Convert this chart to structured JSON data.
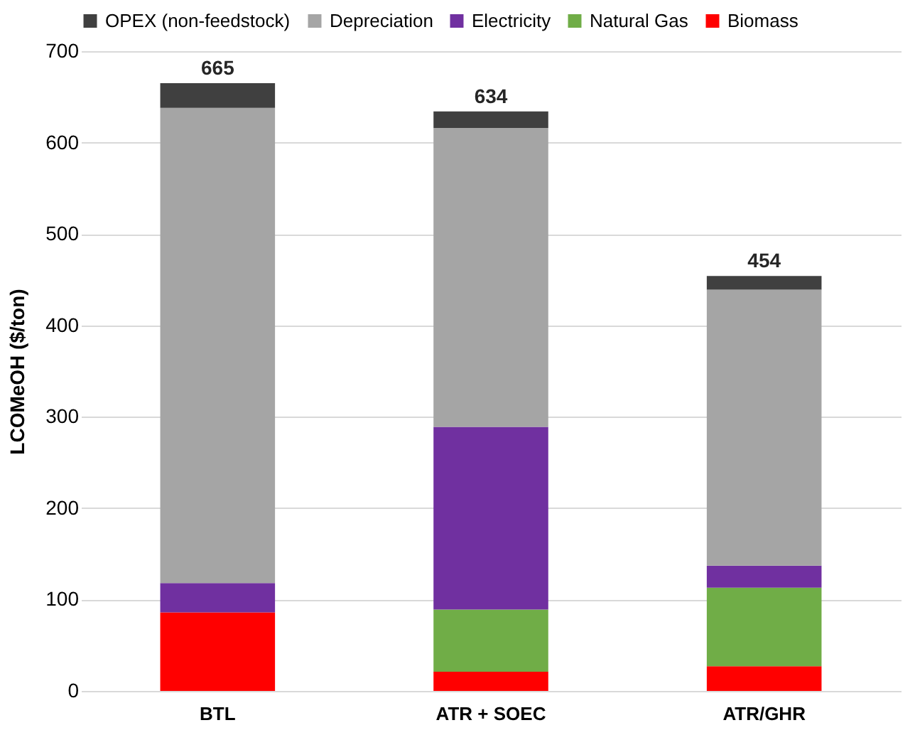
{
  "chart_data": {
    "type": "bar",
    "stacked": true,
    "ylabel": "LCOMeOH ($/ton)",
    "categories": [
      "BTL",
      "ATR + SOEC",
      "ATR/GHR"
    ],
    "series": [
      {
        "name": "Biomass",
        "color": "#ff0000",
        "values": [
          86,
          21,
          27
        ]
      },
      {
        "name": "Natural Gas",
        "color": "#70ad47",
        "values": [
          0,
          68,
          86
        ]
      },
      {
        "name": "Electricity",
        "color": "#7030a0",
        "values": [
          32,
          200,
          24
        ]
      },
      {
        "name": "Depreciation",
        "color": "#a5a5a5",
        "values": [
          520,
          327,
          302
        ]
      },
      {
        "name": "OPEX (non-feedstock)",
        "color": "#404040",
        "values": [
          27,
          18,
          15
        ]
      }
    ],
    "totals": [
      "665",
      "634",
      "454"
    ],
    "ylim": [
      0,
      700
    ],
    "yticks": [
      0,
      100,
      200,
      300,
      400,
      500,
      600,
      700
    ],
    "grid": "y",
    "legend": "top"
  }
}
